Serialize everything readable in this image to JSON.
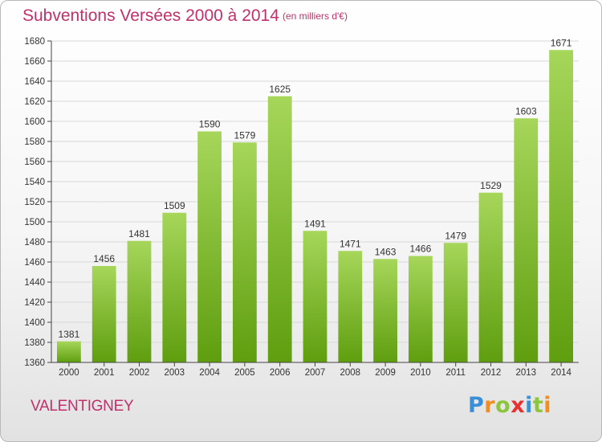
{
  "header": {
    "title": "Subventions Versées 2000 à 2014",
    "subtitle": "(en milliers d'€)"
  },
  "footer": {
    "place": "VALENTIGNEY",
    "logo_letters": [
      "P",
      "r",
      "o",
      "x",
      "i",
      "t",
      "i"
    ],
    "logo_colors": [
      "#3a8fd8",
      "#f28c1e",
      "#8cc63f",
      "#e8312f",
      "#3a8fd8",
      "#8cc63f",
      "#f28c1e"
    ]
  },
  "colors": {
    "bar_light": "#a6d65a",
    "bar_dark": "#5f9e0f",
    "grid": "#d8d8d8",
    "axis": "#444444",
    "accent": "#c0306a"
  },
  "chart_data": {
    "type": "bar",
    "categories": [
      "2000",
      "2001",
      "2002",
      "2003",
      "2004",
      "2005",
      "2006",
      "2007",
      "2008",
      "2009",
      "2010",
      "2011",
      "2012",
      "2013",
      "2014"
    ],
    "values": [
      1381,
      1456,
      1481,
      1509,
      1590,
      1579,
      1625,
      1491,
      1471,
      1463,
      1466,
      1479,
      1529,
      1603,
      1671
    ],
    "ylim": [
      1360,
      1680
    ],
    "yticks": [
      1360,
      1380,
      1400,
      1420,
      1440,
      1460,
      1480,
      1500,
      1520,
      1540,
      1560,
      1580,
      1600,
      1620,
      1640,
      1660,
      1680
    ],
    "grid": true,
    "title": "Subventions Versées 2000 à 2014",
    "xlabel": "",
    "ylabel": ""
  }
}
